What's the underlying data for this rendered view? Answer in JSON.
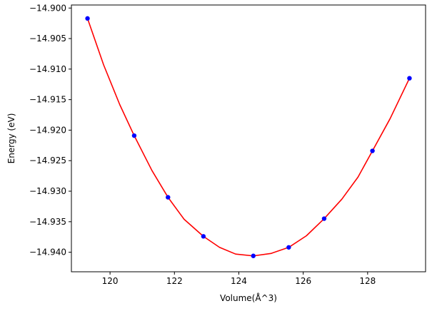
{
  "chart_data": {
    "type": "scatter",
    "title": "",
    "xlabel": "Volume(Å^3)",
    "ylabel": "Energy (eV)",
    "xlim": [
      118.8,
      129.8
    ],
    "ylim": [
      -14.9432,
      -14.8995
    ],
    "x_ticks": [
      120,
      122,
      124,
      126,
      128
    ],
    "x_tick_labels": [
      "120",
      "122",
      "124",
      "126",
      "128"
    ],
    "y_ticks": [
      -14.94,
      -14.935,
      -14.93,
      -14.925,
      -14.92,
      -14.915,
      -14.91,
      -14.905,
      -14.9
    ],
    "y_tick_labels": [
      "−14.940",
      "−14.935",
      "−14.930",
      "−14.925",
      "−14.920",
      "−14.915",
      "−14.910",
      "−14.905",
      "−14.900"
    ],
    "grid": false,
    "legend": "none",
    "series": [
      {
        "kind": "points",
        "color": "#0000ff",
        "x": [
          119.3,
          120.75,
          121.8,
          122.9,
          124.45,
          125.55,
          126.65,
          128.15,
          129.3
        ],
        "y": [
          -14.9017,
          -14.9209,
          -14.931,
          -14.9374,
          -14.9406,
          -14.9392,
          -14.9345,
          -14.9234,
          -14.9115
        ]
      },
      {
        "kind": "fit-curve",
        "color": "#ff0000",
        "x": [
          119.3,
          119.8,
          120.3,
          120.75,
          121.3,
          121.8,
          122.3,
          122.9,
          123.4,
          123.9,
          124.45,
          125.0,
          125.55,
          126.1,
          126.65,
          127.2,
          127.7,
          128.15,
          128.7,
          129.3
        ],
        "y": [
          -14.9017,
          -14.9093,
          -14.9158,
          -14.9209,
          -14.9266,
          -14.931,
          -14.9346,
          -14.9374,
          -14.9392,
          -14.9403,
          -14.9406,
          -14.9402,
          -14.9392,
          -14.9373,
          -14.9345,
          -14.9313,
          -14.9277,
          -14.9234,
          -14.9181,
          -14.9115
        ]
      }
    ]
  }
}
